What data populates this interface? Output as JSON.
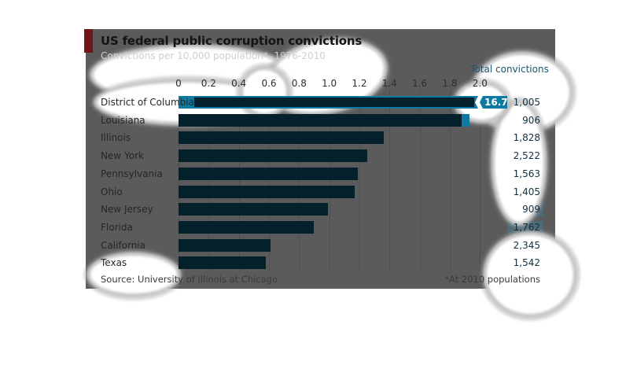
{
  "header": {
    "title": "US federal public corruption convictions",
    "subtitle": "Convictions per 10,000 population*, 1976-2010"
  },
  "footer": {
    "source": "Source: University of Illinois at Chicago",
    "footnote": "*At 2010 populations"
  },
  "chart_data": {
    "type": "bar",
    "orientation": "horizontal",
    "title": "US federal public corruption convictions",
    "subtitle": "Convictions per 10,000 population*, 1976-2010",
    "xlabel": "Convictions per 10,000 population",
    "xlim": [
      0,
      2.0
    ],
    "x_ticks": [
      "0",
      "0.2",
      "0.4",
      "0.6",
      "0.8",
      "1.0",
      "1.2",
      "1.4",
      "1.6",
      "1.8",
      "2.0"
    ],
    "grid": true,
    "legend": "none",
    "total_column_header": "Total convictions",
    "rows": [
      {
        "label": "District of Columbia",
        "rate": 16.7,
        "rate_display": "16.7",
        "off_scale": true,
        "total": "1,005"
      },
      {
        "label": "Louisiana",
        "rate": 1.93,
        "off_scale_tip": true,
        "total": "906"
      },
      {
        "label": "Illinois",
        "rate": 1.36,
        "total": "1,828"
      },
      {
        "label": "New York",
        "rate": 1.25,
        "total": "2,522"
      },
      {
        "label": "Pennsylvania",
        "rate": 1.19,
        "total": "1,563"
      },
      {
        "label": "Ohio",
        "rate": 1.17,
        "total": "1,405"
      },
      {
        "label": "New Jersey",
        "rate": 0.99,
        "total": "909"
      },
      {
        "label": "Florida",
        "rate": 0.9,
        "total": "1,762"
      },
      {
        "label": "California",
        "rate": 0.61,
        "total": "2,345"
      },
      {
        "label": "Texas",
        "rate": 0.58,
        "total": "1,542"
      }
    ],
    "source": "Source: University of Illinois at Chicago",
    "footnote": "*At 2010 populations"
  },
  "colors": {
    "panel_background": "#5b5b5b",
    "bar": "#04202b",
    "highlight": "#0e79a1",
    "badge": "#4e6a77",
    "accent_tab": "#70151a",
    "gridline": "#4e4e4e"
  }
}
